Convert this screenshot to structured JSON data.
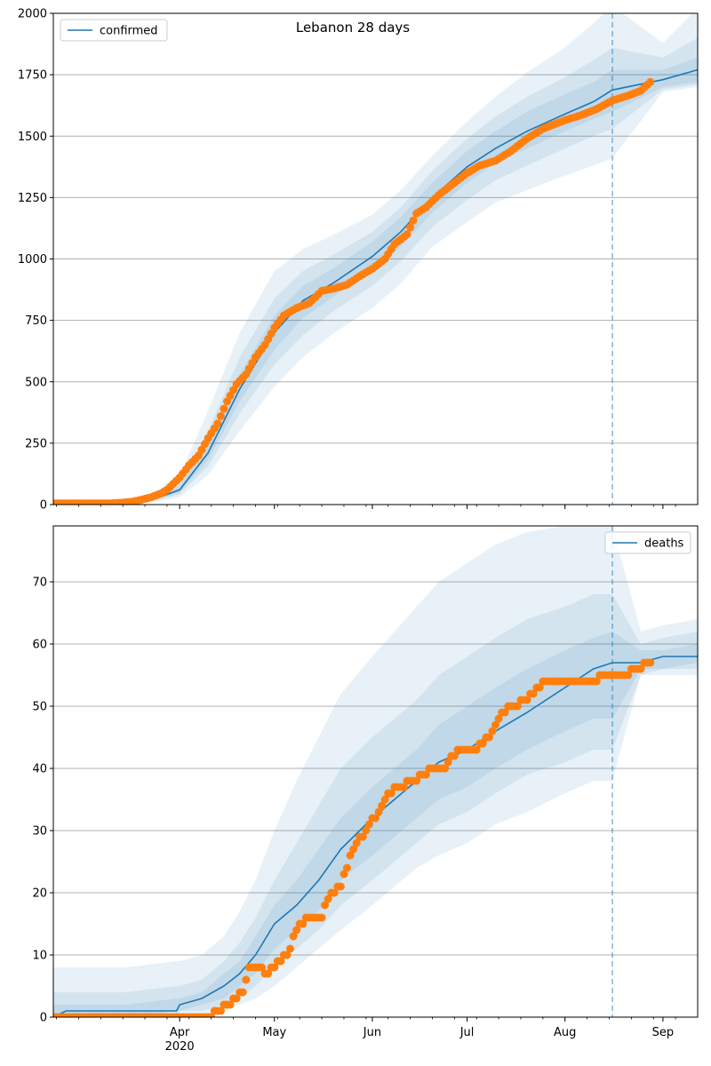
{
  "title": "Lebanon 28 days",
  "chart_data": [
    {
      "type": "line",
      "panel": "top",
      "legend": {
        "label": "confirmed",
        "placement": "upper-left"
      },
      "ylim": [
        0,
        2000
      ],
      "yticks": [
        0,
        250,
        500,
        750,
        1000,
        1250,
        1500,
        1750,
        2000
      ],
      "xlim": [
        "2020-02-21",
        "2020-09-12"
      ],
      "forecast_start": "2020-08-16",
      "grid": "y",
      "model": {
        "dates": [
          "2020-02-21",
          "2020-03-01",
          "2020-03-10",
          "2020-03-15",
          "2020-03-20",
          "2020-03-25",
          "2020-04-01",
          "2020-04-10",
          "2020-04-20",
          "2020-05-01",
          "2020-05-10",
          "2020-05-20",
          "2020-06-01",
          "2020-06-10",
          "2020-06-20",
          "2020-07-01",
          "2020-07-10",
          "2020-07-20",
          "2020-08-01",
          "2020-08-10",
          "2020-08-16",
          "2020-09-01",
          "2020-09-12"
        ],
        "values": [
          0,
          0,
          2,
          5,
          12,
          28,
          60,
          210,
          470,
          700,
          830,
          905,
          1010,
          1110,
          1250,
          1375,
          1450,
          1520,
          1590,
          1640,
          1688,
          1730,
          1770
        ],
        "bands": [
          {
            "lower": [
              0,
              0,
              0,
              2,
              5,
              12,
              30,
              120,
              300,
              480,
              600,
              700,
              800,
              900,
              1050,
              1150,
              1230,
              1280,
              1340,
              1380,
              1410,
              1680,
              1700
            ],
            "upper": [
              0,
              0,
              5,
              12,
              25,
              55,
              120,
              380,
              700,
              950,
              1040,
              1100,
              1180,
              1280,
              1420,
              1560,
              1660,
              1760,
              1860,
              1960,
              2030,
              1880,
              2020
            ]
          },
          {
            "lower": [
              0,
              0,
              0,
              3,
              8,
              18,
              42,
              155,
              370,
              570,
              690,
              790,
              890,
              990,
              1130,
              1240,
              1320,
              1380,
              1450,
              1500,
              1530,
              1690,
              1710
            ],
            "upper": [
              0,
              0,
              4,
              9,
              18,
              42,
              90,
              300,
              600,
              840,
              950,
              1020,
              1110,
              1210,
              1360,
              1490,
              1580,
              1660,
              1740,
              1810,
              1860,
              1820,
              1900
            ]
          },
          {
            "lower": [
              0,
              0,
              1,
              4,
              10,
              22,
              50,
              180,
              420,
              630,
              760,
              850,
              950,
              1050,
              1190,
              1310,
              1390,
              1450,
              1520,
              1570,
              1600,
              1700,
              1720
            ],
            "upper": [
              0,
              0,
              3,
              7,
              15,
              35,
              75,
              250,
              530,
              770,
              890,
              965,
              1070,
              1170,
              1310,
              1440,
              1520,
              1600,
              1670,
              1720,
              1770,
              1770,
              1820
            ]
          }
        ]
      },
      "observed": {
        "dates": [
          "2020-02-21",
          "2020-03-01",
          "2020-03-10",
          "2020-03-14",
          "2020-03-17",
          "2020-03-20",
          "2020-03-23",
          "2020-03-26",
          "2020-03-28",
          "2020-04-01",
          "2020-04-04",
          "2020-04-07",
          "2020-04-10",
          "2020-04-13",
          "2020-04-16",
          "2020-04-19",
          "2020-04-22",
          "2020-04-25",
          "2020-04-28",
          "2020-05-01",
          "2020-05-04",
          "2020-05-08",
          "2020-05-12",
          "2020-05-16",
          "2020-05-20",
          "2020-05-24",
          "2020-05-28",
          "2020-06-01",
          "2020-06-05",
          "2020-06-08",
          "2020-06-12",
          "2020-06-15",
          "2020-06-18",
          "2020-06-22",
          "2020-06-26",
          "2020-07-01",
          "2020-07-05",
          "2020-07-10",
          "2020-07-15",
          "2020-07-20",
          "2020-07-25",
          "2020-08-01",
          "2020-08-06",
          "2020-08-11",
          "2020-08-16",
          "2020-08-21",
          "2020-08-25",
          "2020-08-28"
        ],
        "values": [
          5,
          5,
          5,
          8,
          12,
          20,
          30,
          45,
          60,
          110,
          160,
          200,
          270,
          330,
          420,
          490,
          530,
          600,
          650,
          720,
          770,
          800,
          820,
          870,
          880,
          895,
          930,
          960,
          1000,
          1060,
          1100,
          1185,
          1210,
          1260,
          1300,
          1350,
          1380,
          1400,
          1440,
          1490,
          1530,
          1565,
          1585,
          1610,
          1645,
          1665,
          1685,
          1720
        ]
      },
      "xticks": {
        "labels": [
          "Apr",
          "May",
          "Jun",
          "Jul",
          "Aug",
          "Sep"
        ],
        "dates": [
          "2020-04-01",
          "2020-05-01",
          "2020-06-01",
          "2020-07-01",
          "2020-08-01",
          "2020-09-01"
        ],
        "year_label": "2020"
      }
    },
    {
      "type": "line",
      "panel": "bottom",
      "legend": {
        "label": "deaths",
        "placement": "upper-right"
      },
      "ylim": [
        0,
        79
      ],
      "yticks": [
        0,
        10,
        20,
        30,
        40,
        50,
        60,
        70
      ],
      "xlim": [
        "2020-02-21",
        "2020-09-12"
      ],
      "forecast_start": "2020-08-16",
      "grid": "y",
      "model": {
        "dates": [
          "2020-02-21",
          "2020-02-25",
          "2020-03-15",
          "2020-03-31",
          "2020-04-01",
          "2020-04-08",
          "2020-04-15",
          "2020-04-20",
          "2020-04-25",
          "2020-05-01",
          "2020-05-08",
          "2020-05-15",
          "2020-05-22",
          "2020-06-01",
          "2020-06-08",
          "2020-06-15",
          "2020-06-22",
          "2020-07-01",
          "2020-07-10",
          "2020-07-20",
          "2020-08-01",
          "2020-08-10",
          "2020-08-16",
          "2020-08-25",
          "2020-09-01",
          "2020-09-12"
        ],
        "values": [
          0,
          1,
          1,
          1,
          2,
          3,
          5,
          7,
          10,
          15,
          18,
          22,
          27,
          32,
          35,
          38,
          41,
          43,
          46,
          49,
          53,
          56,
          57,
          57,
          58,
          58
        ],
        "bands": [
          {
            "lower": [
              0,
              0,
              0,
              0,
              0,
              0,
              1,
              2,
              3,
              5,
              8,
              11,
              14,
              18,
              21,
              24,
              26,
              28,
              31,
              33,
              36,
              38,
              38,
              55,
              55,
              55
            ],
            "upper": [
              8,
              8,
              8,
              9,
              9,
              10,
              13,
              17,
              22,
              30,
              38,
              45,
              52,
              58,
              62,
              66,
              70,
              73,
              76,
              78,
              79,
              79,
              79,
              62,
              63,
              64
            ]
          },
          {
            "lower": [
              0,
              0,
              0,
              0,
              1,
              1,
              2,
              3,
              5,
              8,
              11,
              14,
              18,
              22,
              25,
              28,
              31,
              33,
              36,
              39,
              41,
              43,
              43,
              55,
              56,
              56
            ],
            "upper": [
              4,
              4,
              4,
              5,
              5,
              6,
              9,
              12,
              16,
              22,
              28,
              34,
              40,
              45,
              48,
              51,
              55,
              58,
              61,
              64,
              66,
              68,
              68,
              60,
              61,
              62
            ]
          },
          {
            "lower": [
              0,
              0,
              0,
              1,
              1,
              2,
              3,
              5,
              7,
              11,
              14,
              17,
              22,
              26,
              29,
              32,
              35,
              37,
              40,
              43,
              46,
              48,
              48,
              56,
              56,
              57
            ],
            "upper": [
              2,
              2,
              2,
              3,
              3,
              4,
              7,
              9,
              13,
              18,
              22,
              27,
              32,
              37,
              40,
              43,
              47,
              50,
              53,
              56,
              59,
              61,
              62,
              59,
              59,
              60
            ]
          }
        ]
      },
      "observed": {
        "dates": [
          "2020-02-21",
          "2020-04-10",
          "2020-04-13",
          "2020-04-16",
          "2020-04-21",
          "2020-04-23",
          "2020-04-25",
          "2020-04-29",
          "2020-05-02",
          "2020-05-05",
          "2020-05-09",
          "2020-05-13",
          "2020-05-16",
          "2020-05-18",
          "2020-05-22",
          "2020-05-24",
          "2020-05-26",
          "2020-05-31",
          "2020-06-03",
          "2020-06-06",
          "2020-06-10",
          "2020-06-14",
          "2020-06-20",
          "2020-06-24",
          "2020-06-28",
          "2020-07-04",
          "2020-07-08",
          "2020-07-11",
          "2020-07-15",
          "2020-07-20",
          "2020-07-25",
          "2020-08-01",
          "2020-08-08",
          "2020-08-16",
          "2020-08-20",
          "2020-08-24",
          "2020-08-28"
        ],
        "values": [
          0,
          0,
          1,
          2,
          4,
          8,
          8,
          7,
          9,
          10,
          15,
          16,
          16,
          19,
          21,
          24,
          27,
          31,
          33,
          36,
          37,
          38,
          40,
          40,
          43,
          43,
          45,
          48,
          50,
          51,
          54,
          54,
          54,
          55,
          55,
          56,
          57
        ]
      },
      "xticks": {
        "labels": [
          "Apr",
          "May",
          "Jun",
          "Jul",
          "Aug",
          "Sep"
        ],
        "dates": [
          "2020-04-01",
          "2020-05-01",
          "2020-06-01",
          "2020-07-01",
          "2020-08-01",
          "2020-09-01"
        ],
        "year_label": "2020"
      }
    }
  ],
  "colors": {
    "model_line": "#1f77b4",
    "observed_points": "#ff7f0e",
    "band": "#1f77b4",
    "grid": "#b0b0b0",
    "axis": "#000000",
    "forecast_line": "#1f77b4"
  }
}
